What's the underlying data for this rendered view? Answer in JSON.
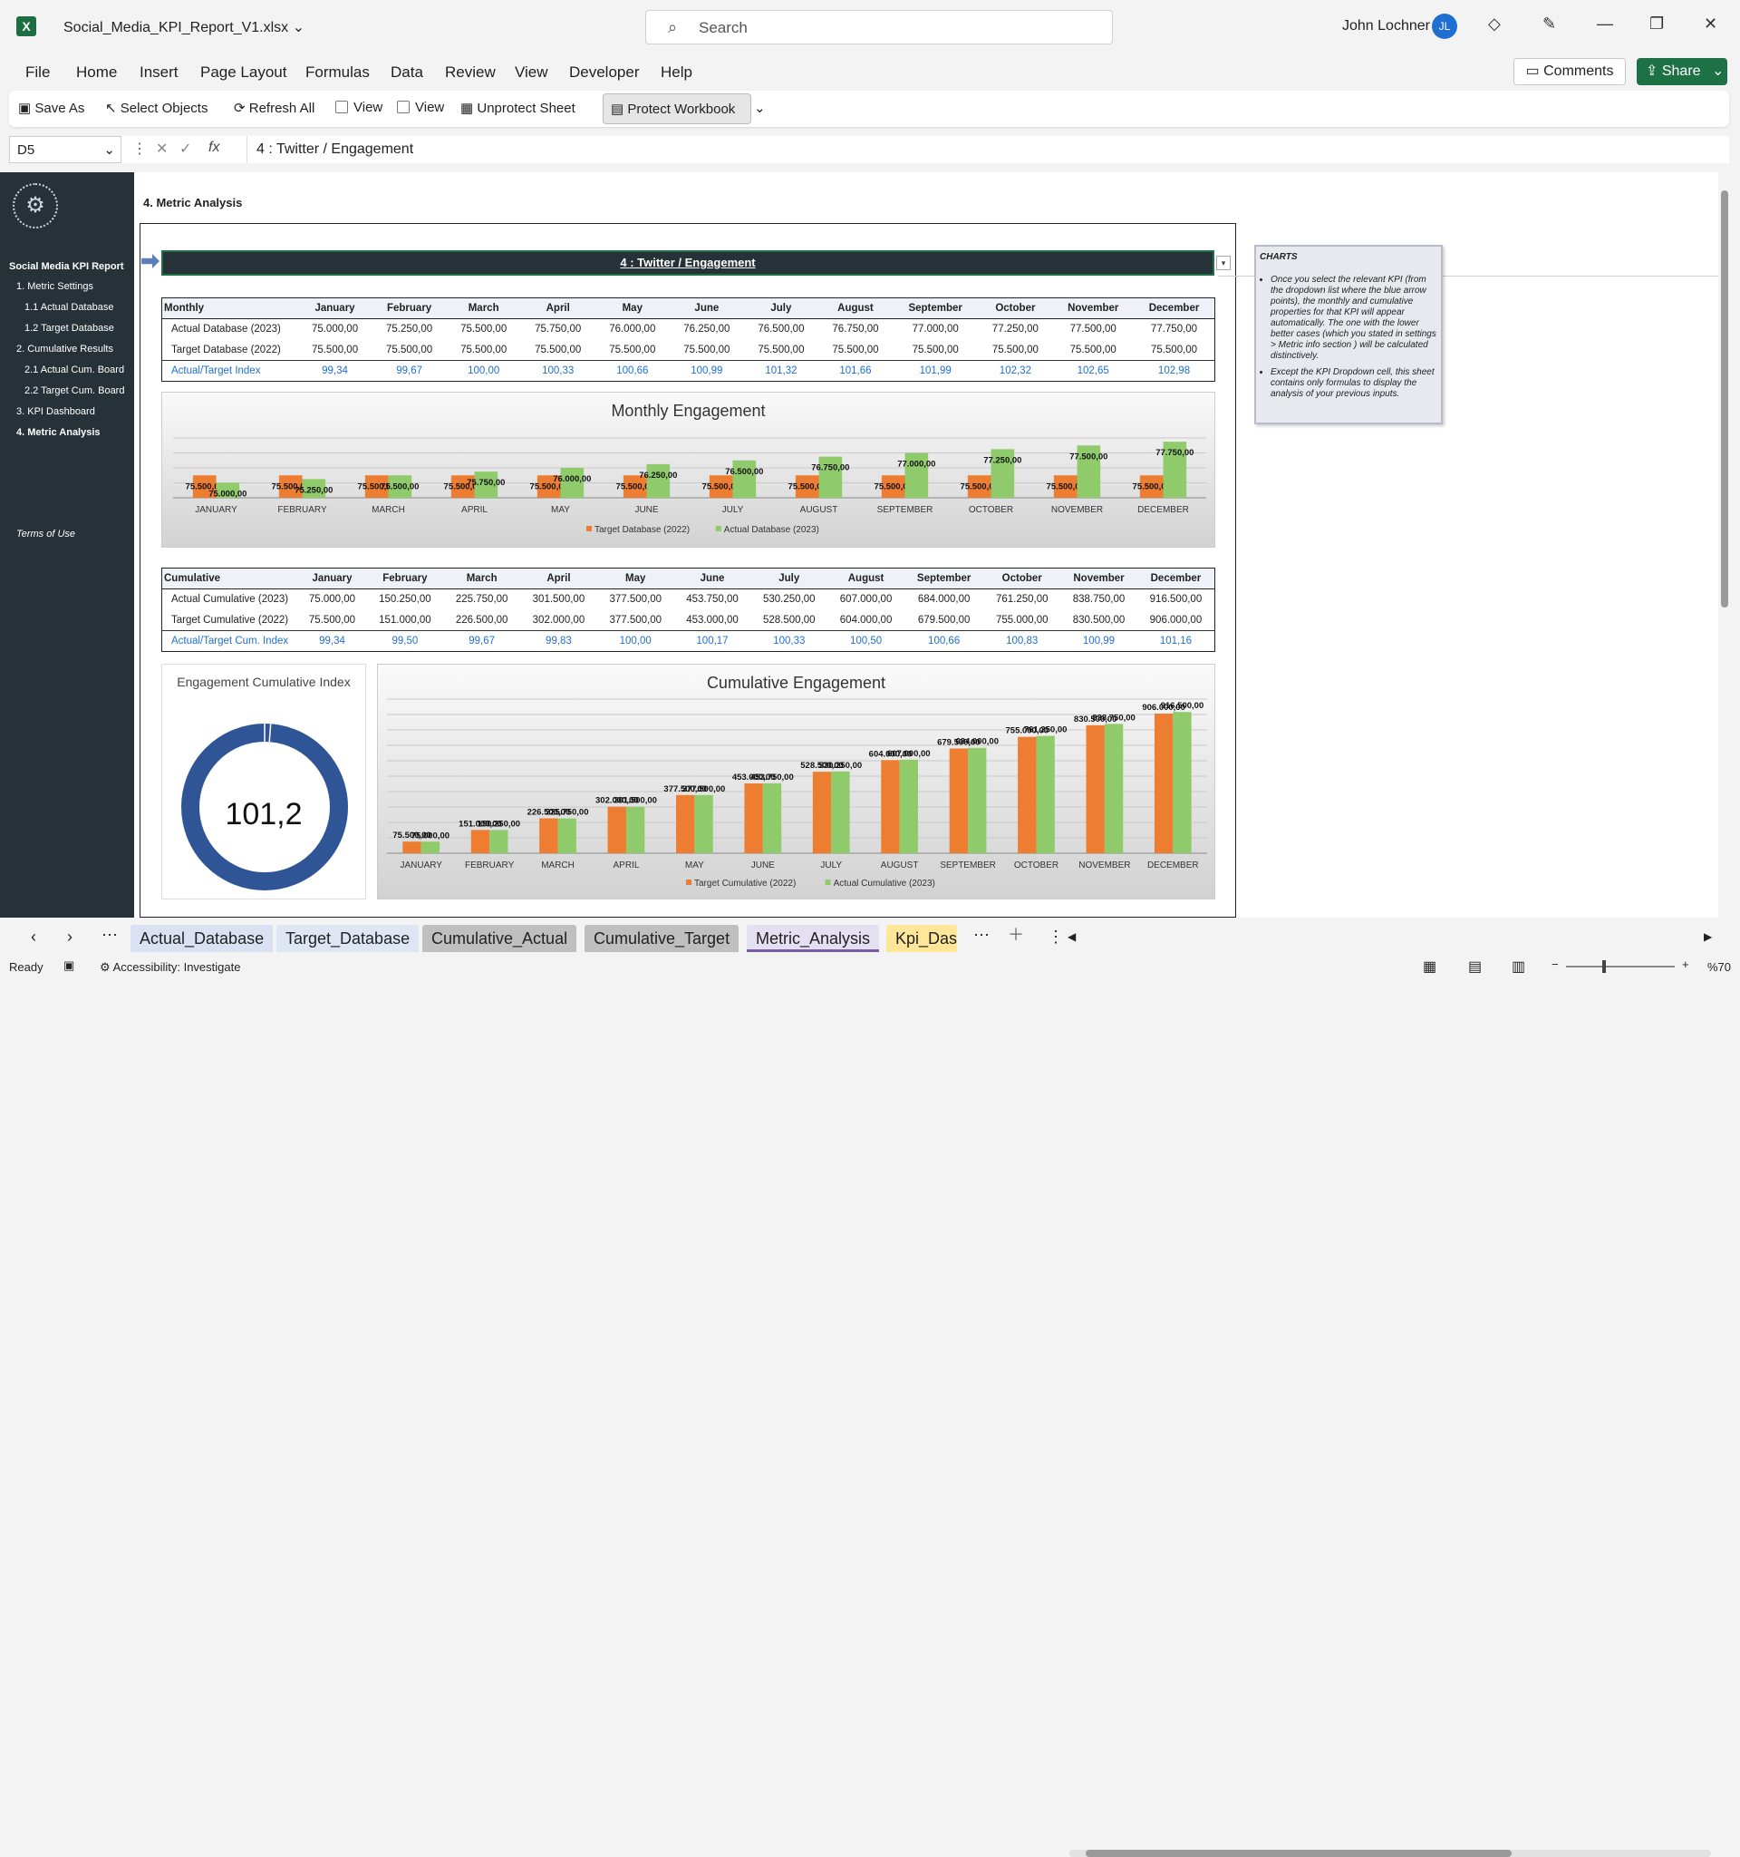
{
  "window": {
    "filename": "Social_Media_KPI_Report_V1.xlsx",
    "search_placeholder": "Search",
    "user": "John Lochner",
    "initials": "JL",
    "app_letter": "X"
  },
  "menu": [
    "File",
    "Home",
    "Insert",
    "Page Layout",
    "Formulas",
    "Data",
    "Review",
    "View",
    "Developer",
    "Help"
  ],
  "comments": "Comments",
  "share": "Share",
  "ribbon": {
    "save_as": "Save As",
    "select_objects": "Select Objects",
    "refresh_all": "Refresh All",
    "view1": "View",
    "view2": "View",
    "unprotect": "Unprotect Sheet",
    "protect": "Protect Workbook"
  },
  "formula": {
    "cell": "D5",
    "value": "4 : Twitter / Engagement"
  },
  "sidebar": {
    "title": "Social Media KPI Report",
    "items": [
      "1. Metric Settings",
      "1.1 Actual Database",
      "1.2 Target Database",
      "2. Cumulative Results",
      "2.1 Actual Cum. Board",
      "2.2 Target Cum. Board",
      "3. KPI Dashboard",
      "4. Metric Analysis"
    ],
    "terms": "Terms of Use"
  },
  "sheet": {
    "section_title": "4. Metric Analysis",
    "selected_kpi": "4 : Twitter / Engagement"
  },
  "months": [
    "January",
    "February",
    "March",
    "April",
    "May",
    "June",
    "July",
    "August",
    "September",
    "October",
    "November",
    "December"
  ],
  "months_upper": [
    "JANUARY",
    "FEBRUARY",
    "MARCH",
    "APRIL",
    "MAY",
    "JUNE",
    "JULY",
    "AUGUST",
    "SEPTEMBER",
    "OCTOBER",
    "NOVEMBER",
    "DECEMBER"
  ],
  "monthly_table": {
    "header": "Monthly",
    "rows": [
      {
        "label": "Actual Database (2023)",
        "values": [
          "75.000,00",
          "75.250,00",
          "75.500,00",
          "75.750,00",
          "76.000,00",
          "76.250,00",
          "76.500,00",
          "76.750,00",
          "77.000,00",
          "77.250,00",
          "77.500,00",
          "77.750,00"
        ]
      },
      {
        "label": "Target Database (2022)",
        "values": [
          "75.500,00",
          "75.500,00",
          "75.500,00",
          "75.500,00",
          "75.500,00",
          "75.500,00",
          "75.500,00",
          "75.500,00",
          "75.500,00",
          "75.500,00",
          "75.500,00",
          "75.500,00"
        ]
      },
      {
        "label": "Actual/Target Index",
        "values": [
          "99,34",
          "99,67",
          "100,00",
          "100,33",
          "100,66",
          "100,99",
          "101,32",
          "101,66",
          "101,99",
          "102,32",
          "102,65",
          "102,98"
        ]
      }
    ]
  },
  "cumulative_table": {
    "header": "Cumulative",
    "rows": [
      {
        "label": "Actual Cumulative (2023)",
        "values": [
          "75.000,00",
          "150.250,00",
          "225.750,00",
          "301.500,00",
          "377.500,00",
          "453.750,00",
          "530.250,00",
          "607.000,00",
          "684.000,00",
          "761.250,00",
          "838.750,00",
          "916.500,00"
        ]
      },
      {
        "label": "Target Cumulative (2022)",
        "values": [
          "75.500,00",
          "151.000,00",
          "226.500,00",
          "302.000,00",
          "377.500,00",
          "453.000,00",
          "528.500,00",
          "604.000,00",
          "679.500,00",
          "755.000,00",
          "830.500,00",
          "906.000,00"
        ]
      },
      {
        "label": "Actual/Target Cum. Index",
        "values": [
          "99,34",
          "99,50",
          "99,67",
          "99,83",
          "100,00",
          "100,17",
          "100,33",
          "100,50",
          "100,66",
          "100,83",
          "100,99",
          "101,16"
        ]
      }
    ]
  },
  "note": {
    "title": "CHARTS",
    "bullets": [
      "Once you select the relevant KPI (from the dropdown list where the blue arrow points), the monthly and cumulative properties for that KPI will appear automatically. The one with the lower better cases (which you stated in settings > Metric info section ) will be calculated distinctively.",
      "Except the KPI Dropdown cell, this sheet contains only formulas to display the analysis of your previous inputs."
    ]
  },
  "chart_data": [
    {
      "type": "bar",
      "title": "Monthly Engagement",
      "categories": [
        "JANUARY",
        "FEBRUARY",
        "MARCH",
        "APRIL",
        "MAY",
        "JUNE",
        "JULY",
        "AUGUST",
        "SEPTEMBER",
        "OCTOBER",
        "NOVEMBER",
        "DECEMBER"
      ],
      "series": [
        {
          "name": "Target Database (2022)",
          "color": "#ed7d31",
          "values": [
            75500,
            75500,
            75500,
            75500,
            75500,
            75500,
            75500,
            75500,
            75500,
            75500,
            75500,
            75500
          ],
          "labels": [
            "75.500,00",
            "75.500,00",
            "75.500,00",
            "75.500,00",
            "75.500,00",
            "75.500,00",
            "75.500,00",
            "75.500,00",
            "75.500,00",
            "75.500,00",
            "75.500,00",
            "75.500,00"
          ]
        },
        {
          "name": "Actual Database (2023)",
          "color": "#8fcb6b",
          "values": [
            75000,
            75250,
            75500,
            75750,
            76000,
            76250,
            76500,
            76750,
            77000,
            77250,
            77500,
            77750
          ],
          "labels": [
            "75.000,00",
            "75.250,00",
            "75.500,00",
            "75.750,00",
            "76.000,00",
            "76.250,00",
            "76.500,00",
            "76.750,00",
            "77.000,00",
            "77.250,00",
            "77.500,00",
            "77.750,00"
          ]
        }
      ],
      "ylim": [
        74000,
        78000
      ],
      "legend": "bottom"
    },
    {
      "type": "bar",
      "title": "Cumulative Engagement",
      "categories": [
        "JANUARY",
        "FEBRUARY",
        "MARCH",
        "APRIL",
        "MAY",
        "JUNE",
        "JULY",
        "AUGUST",
        "SEPTEMBER",
        "OCTOBER",
        "NOVEMBER",
        "DECEMBER"
      ],
      "series": [
        {
          "name": "Target Cumulative (2022)",
          "color": "#ed7d31",
          "values": [
            75500,
            151000,
            226500,
            302000,
            377500,
            453000,
            528500,
            604000,
            679500,
            755000,
            830500,
            906000
          ],
          "labels": [
            "75.500,00",
            "151.000,00",
            "226.500,00",
            "302.000,00",
            "377.500,00",
            "453.000,00",
            "528.500,00",
            "604.000,00",
            "679.500,00",
            "755.000,00",
            "830.500,00",
            "906.000,00"
          ]
        },
        {
          "name": "Actual Cumulative (2023)",
          "color": "#8fcb6b",
          "values": [
            75000,
            150250,
            225750,
            301500,
            377500,
            453750,
            530250,
            607000,
            684000,
            761250,
            838750,
            916500
          ],
          "labels": [
            "75.000,00",
            "150.250,00",
            "225.750,00",
            "301.500,00",
            "377.500,00",
            "453.750,00",
            "530.250,00",
            "607.000,00",
            "684.000,00",
            "761.250,00",
            "838.750,00",
            "916.500,00"
          ]
        }
      ],
      "ylim": [
        0,
        1000000
      ],
      "legend": "bottom"
    },
    {
      "type": "pie",
      "title": "Engagement Cumulative Index",
      "value": 101.16,
      "label": "101,2",
      "color": "#2f5597"
    }
  ],
  "tabs": [
    "Actual_Database",
    "Target_Database",
    "Cumulative_Actual",
    "Cumulative_Target",
    "Metric_Analysis",
    "Kpi_Dash"
  ],
  "status": {
    "ready": "Ready",
    "accessibility": "Accessibility: Investigate",
    "zoom": "%70"
  }
}
